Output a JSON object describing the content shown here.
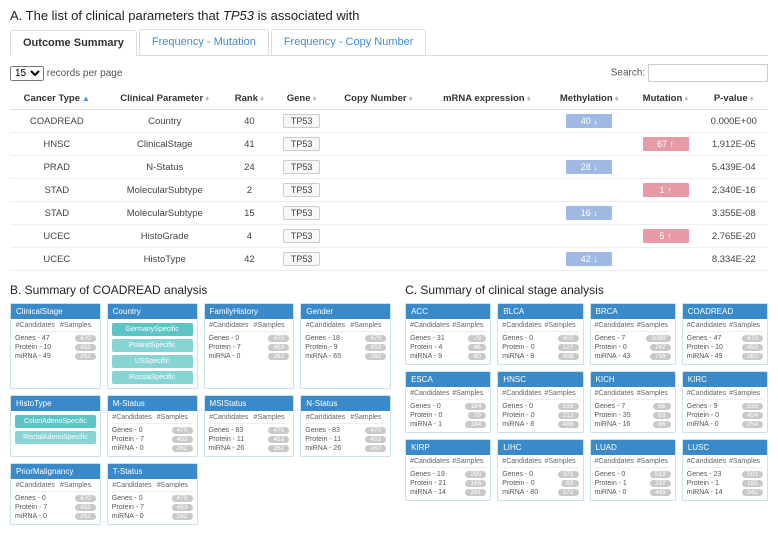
{
  "sectionA": {
    "label_prefix": "A. The list of clinical parameters that ",
    "gene": "TP53",
    "label_suffix": " is associated with",
    "tabs": [
      {
        "label": "Outcome Summary",
        "active": true
      },
      {
        "label": "Frequency - Mutation",
        "active": false
      },
      {
        "label": "Frequency - Copy Number",
        "active": false
      }
    ],
    "records_select": "15",
    "records_text": "records per page",
    "search_label": "Search:",
    "columns": [
      "Cancer Type",
      "Clinical Parameter",
      "Rank",
      "Gene",
      "Copy Number",
      "mRNA expression",
      "Methylation",
      "Mutation",
      "P-value"
    ],
    "rows": [
      {
        "ct": "COADREAD",
        "cp": "Country",
        "rank": "40",
        "gene": "TP53",
        "meth": {
          "text": "40 ↓",
          "color": "blue"
        },
        "mut": null,
        "p": "0.000E+00"
      },
      {
        "ct": "HNSC",
        "cp": "ClinicalStage",
        "rank": "41",
        "gene": "TP53",
        "meth": null,
        "mut": {
          "text": "67 ↑",
          "color": "pink"
        },
        "p": "1.912E-05"
      },
      {
        "ct": "PRAD",
        "cp": "N-Status",
        "rank": "24",
        "gene": "TP53",
        "meth": {
          "text": "28 ↓",
          "color": "blue"
        },
        "mut": null,
        "p": "5.439E-04"
      },
      {
        "ct": "STAD",
        "cp": "MolecularSubtype",
        "rank": "2",
        "gene": "TP53",
        "meth": null,
        "mut": {
          "text": "1 ↑",
          "color": "pink"
        },
        "p": "2.340E-16"
      },
      {
        "ct": "STAD",
        "cp": "MolecularSubtype",
        "rank": "15",
        "gene": "TP53",
        "meth": {
          "text": "16 ↓",
          "color": "blue"
        },
        "mut": null,
        "p": "3.355E-08"
      },
      {
        "ct": "UCEC",
        "cp": "HistoGrade",
        "rank": "4",
        "gene": "TP53",
        "meth": null,
        "mut": {
          "text": "5 ↑",
          "color": "pink"
        },
        "p": "2.765E-20"
      },
      {
        "ct": "UCEC",
        "cp": "HistoType",
        "rank": "42",
        "gene": "TP53",
        "meth": {
          "text": "42 ↓",
          "color": "blue"
        },
        "mut": null,
        "p": "8.334E-22"
      }
    ]
  },
  "sectionB": {
    "label": "B. Summary of COADREAD analysis",
    "panels": [
      {
        "title": "ClinicalStage",
        "type": "stats",
        "rows": [
          [
            "Genes - 47",
            "470"
          ],
          [
            "Protein - 10",
            "453"
          ],
          [
            "miRNA - 49",
            "262"
          ]
        ]
      },
      {
        "title": "Country",
        "type": "teal",
        "items": [
          "GermanySpecific",
          "PolandSpecific",
          "USSpecific",
          "RussiaSpecific"
        ]
      },
      {
        "title": "FamilyHistory",
        "type": "stats",
        "rows": [
          [
            "Genes - 0",
            "470"
          ],
          [
            "Protein - 7",
            "453"
          ],
          [
            "miRNA - 0",
            "262"
          ]
        ]
      },
      {
        "title": "Gender",
        "type": "stats",
        "rows": [
          [
            "Genes - 18",
            "470"
          ],
          [
            "Protein - 9",
            "453"
          ],
          [
            "miRNA - 65",
            "262"
          ]
        ]
      },
      {
        "title": "HistoType",
        "type": "teal",
        "items": [
          "ColonAdenoSpecific",
          "RectalAdenoSpecific"
        ]
      },
      {
        "title": "M-Status",
        "type": "stats",
        "rows": [
          [
            "Genes - 0",
            "470"
          ],
          [
            "Protein - 7",
            "453"
          ],
          [
            "miRNA - 0",
            "262"
          ]
        ]
      },
      {
        "title": "MSIStatus",
        "type": "stats",
        "rows": [
          [
            "Genes - 83",
            "470"
          ],
          [
            "Protein - 11",
            "453"
          ],
          [
            "miRNA - 26",
            "262"
          ]
        ]
      },
      {
        "title": "N-Status",
        "type": "stats",
        "rows": [
          [
            "Genes - 83",
            "470"
          ],
          [
            "Protein - 11",
            "453"
          ],
          [
            "miRNA - 26",
            "262"
          ]
        ]
      },
      {
        "title": "PriorMalignancy",
        "type": "stats",
        "rows": [
          [
            "Genes - 0",
            "470"
          ],
          [
            "Protein - 7",
            "453"
          ],
          [
            "miRNA - 0",
            "262"
          ]
        ]
      },
      {
        "title": "T-Status",
        "type": "stats",
        "rows": [
          [
            "Genes - 0",
            "470"
          ],
          [
            "Protein - 7",
            "453"
          ],
          [
            "miRNA - 0",
            "262"
          ]
        ]
      }
    ]
  },
  "sectionC": {
    "label": "C. Summary of clinical stage analysis",
    "panels": [
      {
        "title": "ACC",
        "rows": [
          [
            "Genes - 31",
            "79"
          ],
          [
            "Protein - 4",
            "46"
          ],
          [
            "miRNA - 9",
            "80"
          ]
        ]
      },
      {
        "title": "BLCA",
        "rows": [
          [
            "Genes - 0",
            "407"
          ],
          [
            "Protein - 0",
            "127"
          ],
          [
            "miRNA - 8",
            "408"
          ]
        ]
      },
      {
        "title": "BRCA",
        "rows": [
          [
            "Genes - 7",
            "1080"
          ],
          [
            "Protein - 0",
            "747"
          ],
          [
            "miRNA - 43",
            "756"
          ]
        ]
      },
      {
        "title": "COADREAD",
        "rows": [
          [
            "Genes - 47",
            "470"
          ],
          [
            "Protein - 10",
            "453"
          ],
          [
            "miRNA - 49",
            "262"
          ]
        ]
      },
      {
        "title": "ESCA",
        "rows": [
          [
            "Genes - 0",
            "184"
          ],
          [
            "Protein - 0",
            "79"
          ],
          [
            "miRNA - 1",
            "184"
          ]
        ]
      },
      {
        "title": "HNSC",
        "rows": [
          [
            "Genes - 0",
            "519"
          ],
          [
            "Protein - 0",
            "212"
          ],
          [
            "miRNA - 8",
            "486"
          ]
        ]
      },
      {
        "title": "KICH",
        "rows": [
          [
            "Genes - 7",
            "66"
          ],
          [
            "Protein - 35",
            "63"
          ],
          [
            "miRNA - 16",
            "66"
          ]
        ]
      },
      {
        "title": "KIRC",
        "rows": [
          [
            "Genes - 9",
            "533"
          ],
          [
            "Protein - 0",
            "454"
          ],
          [
            "miRNA - 0",
            "254"
          ]
        ]
      },
      {
        "title": "KIRP",
        "rows": [
          [
            "Genes - 19",
            "290"
          ],
          [
            "Protein - 21",
            "165"
          ],
          [
            "miRNA - 14",
            "291"
          ]
        ]
      },
      {
        "title": "LIHC",
        "rows": [
          [
            "Genes - 0",
            "371"
          ],
          [
            "Protein - 0",
            "63"
          ],
          [
            "miRNA - 80",
            "372"
          ]
        ]
      },
      {
        "title": "LUAD",
        "rows": [
          [
            "Genes - 0",
            "513"
          ],
          [
            "Protein - 1",
            "237"
          ],
          [
            "miRNA - 0",
            "449"
          ]
        ]
      },
      {
        "title": "LUSC",
        "rows": [
          [
            "Genes - 23",
            "501"
          ],
          [
            "Protein - 1",
            "195"
          ],
          [
            "miRNA - 14",
            "342"
          ]
        ]
      }
    ]
  },
  "stats_header": {
    "c": "#Candidates",
    "s": "#Samples"
  }
}
